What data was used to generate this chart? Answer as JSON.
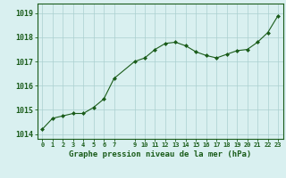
{
  "x": [
    0,
    1,
    2,
    3,
    4,
    5,
    6,
    7,
    9,
    10,
    11,
    12,
    13,
    14,
    15,
    16,
    17,
    18,
    19,
    20,
    21,
    22,
    23
  ],
  "y": [
    1014.2,
    1014.65,
    1014.75,
    1014.85,
    1014.85,
    1015.1,
    1015.45,
    1016.3,
    1017.0,
    1017.15,
    1017.5,
    1017.75,
    1017.8,
    1017.65,
    1017.4,
    1017.25,
    1017.15,
    1017.3,
    1017.45,
    1017.5,
    1017.8,
    1018.2,
    1018.9
  ],
  "xlim": [
    -0.5,
    23.5
  ],
  "ylim": [
    1013.8,
    1019.4
  ],
  "yticks": [
    1014,
    1015,
    1016,
    1017,
    1018,
    1019
  ],
  "xticks": [
    0,
    1,
    2,
    3,
    4,
    5,
    6,
    7,
    9,
    10,
    11,
    12,
    13,
    14,
    15,
    16,
    17,
    18,
    19,
    20,
    21,
    22,
    23
  ],
  "xlabel": "Graphe pression niveau de la mer (hPa)",
  "line_color": "#1a5c1a",
  "marker": "D",
  "marker_size": 2.0,
  "bg_color": "#d9f0f0",
  "grid_color": "#aacfcf",
  "label_color": "#1a5c1a",
  "tick_label_color": "#1a5c1a",
  "xlabel_fontsize": 6.5,
  "ytick_fontsize": 6.0,
  "xtick_fontsize": 5.0,
  "linewidth": 0.8
}
